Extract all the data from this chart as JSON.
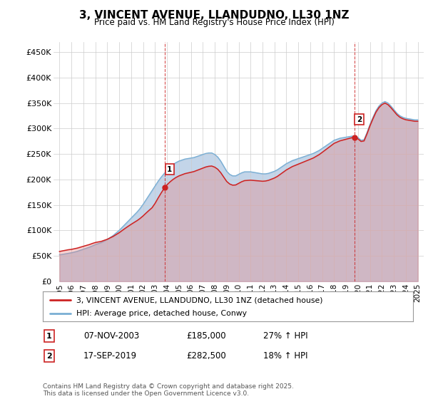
{
  "title": "3, VINCENT AVENUE, LLANDUDNO, LL30 1NZ",
  "subtitle": "Price paid vs. HM Land Registry's House Price Index (HPI)",
  "ytick_labels": [
    "£0",
    "£50K",
    "£100K",
    "£150K",
    "£200K",
    "£250K",
    "£300K",
    "£350K",
    "£400K",
    "£450K"
  ],
  "yticks": [
    0,
    50000,
    100000,
    150000,
    200000,
    250000,
    300000,
    350000,
    400000,
    450000
  ],
  "xlim_start": 1994.5,
  "xlim_end": 2025.5,
  "ylim": [
    0,
    470000
  ],
  "hpi_color": "#aac4e0",
  "hpi_line_color": "#7aafd4",
  "price_color": "#cc2222",
  "price_fill_color": "#e88080",
  "sale1_date": "07-NOV-2003",
  "sale1_price": 185000,
  "sale1_hpi_pct": "27% ↑ HPI",
  "sale2_date": "17-SEP-2019",
  "sale2_price": 282500,
  "sale2_hpi_pct": "18% ↑ HPI",
  "legend_label1": "3, VINCENT AVENUE, LLANDUDNO, LL30 1NZ (detached house)",
  "legend_label2": "HPI: Average price, detached house, Conwy",
  "footer": "Contains HM Land Registry data © Crown copyright and database right 2025.\nThis data is licensed under the Open Government Licence v3.0.",
  "hpi_x": [
    1995,
    1995.25,
    1995.5,
    1995.75,
    1996,
    1996.25,
    1996.5,
    1996.75,
    1997,
    1997.25,
    1997.5,
    1997.75,
    1998,
    1998.25,
    1998.5,
    1998.75,
    1999,
    1999.25,
    1999.5,
    1999.75,
    2000,
    2000.25,
    2000.5,
    2000.75,
    2001,
    2001.25,
    2001.5,
    2001.75,
    2002,
    2002.25,
    2002.5,
    2002.75,
    2003,
    2003.25,
    2003.5,
    2003.75,
    2004,
    2004.25,
    2004.5,
    2004.75,
    2005,
    2005.25,
    2005.5,
    2005.75,
    2006,
    2006.25,
    2006.5,
    2006.75,
    2007,
    2007.25,
    2007.5,
    2007.75,
    2008,
    2008.25,
    2008.5,
    2008.75,
    2009,
    2009.25,
    2009.5,
    2009.75,
    2010,
    2010.25,
    2010.5,
    2010.75,
    2011,
    2011.25,
    2011.5,
    2011.75,
    2012,
    2012.25,
    2012.5,
    2012.75,
    2013,
    2013.25,
    2013.5,
    2013.75,
    2014,
    2014.25,
    2014.5,
    2014.75,
    2015,
    2015.25,
    2015.5,
    2015.75,
    2016,
    2016.25,
    2016.5,
    2016.75,
    2017,
    2017.25,
    2017.5,
    2017.75,
    2018,
    2018.25,
    2018.5,
    2018.75,
    2019,
    2019.25,
    2019.5,
    2019.75,
    2020,
    2020.25,
    2020.5,
    2020.75,
    2021,
    2021.25,
    2021.5,
    2021.75,
    2022,
    2022.25,
    2022.5,
    2022.75,
    2023,
    2023.25,
    2023.5,
    2023.75,
    2024,
    2024.25,
    2024.5,
    2024.75,
    2025
  ],
  "hpi_y": [
    52000,
    53000,
    54000,
    55000,
    56000,
    57500,
    59000,
    61000,
    63000,
    65000,
    67000,
    69500,
    72000,
    74000,
    76000,
    79000,
    82000,
    86000,
    90000,
    95000,
    100000,
    106000,
    112000,
    118000,
    124000,
    130000,
    136000,
    143000,
    151000,
    160000,
    169000,
    178000,
    187000,
    196000,
    204000,
    211000,
    218000,
    224000,
    229000,
    233000,
    236000,
    238000,
    240000,
    241000,
    242000,
    243000,
    245000,
    247000,
    249000,
    251000,
    252000,
    252000,
    249000,
    244000,
    236000,
    226000,
    216000,
    210000,
    207000,
    207000,
    210000,
    213000,
    215000,
    215000,
    215000,
    214000,
    213000,
    212000,
    211000,
    211000,
    212000,
    214000,
    216000,
    219000,
    223000,
    227000,
    231000,
    234000,
    237000,
    239000,
    241000,
    243000,
    245000,
    247000,
    249000,
    251000,
    254000,
    257000,
    261000,
    265000,
    269000,
    273000,
    277000,
    279000,
    281000,
    282000,
    283000,
    284000,
    285000,
    285000,
    282000,
    277000,
    278000,
    292000,
    308000,
    322000,
    335000,
    344000,
    350000,
    353000,
    350000,
    344000,
    337000,
    330000,
    325000,
    322000,
    320000,
    319000,
    318000,
    317000,
    317000
  ],
  "price_x": [
    1995.75,
    1997.83,
    2002.83,
    2003.83,
    2019.7
  ],
  "price_y": [
    62000,
    75000,
    146000,
    185000,
    282500
  ],
  "sale1_x": 2003.83,
  "sale1_y": 185000,
  "sale2_x": 2019.7,
  "sale2_y": 282500,
  "bg_color": "#ffffff",
  "grid_color": "#cccccc",
  "xticks": [
    1995,
    1996,
    1997,
    1998,
    1999,
    2000,
    2001,
    2002,
    2003,
    2004,
    2005,
    2006,
    2007,
    2008,
    2009,
    2010,
    2011,
    2012,
    2013,
    2014,
    2015,
    2016,
    2017,
    2018,
    2019,
    2020,
    2021,
    2022,
    2023,
    2024,
    2025
  ]
}
